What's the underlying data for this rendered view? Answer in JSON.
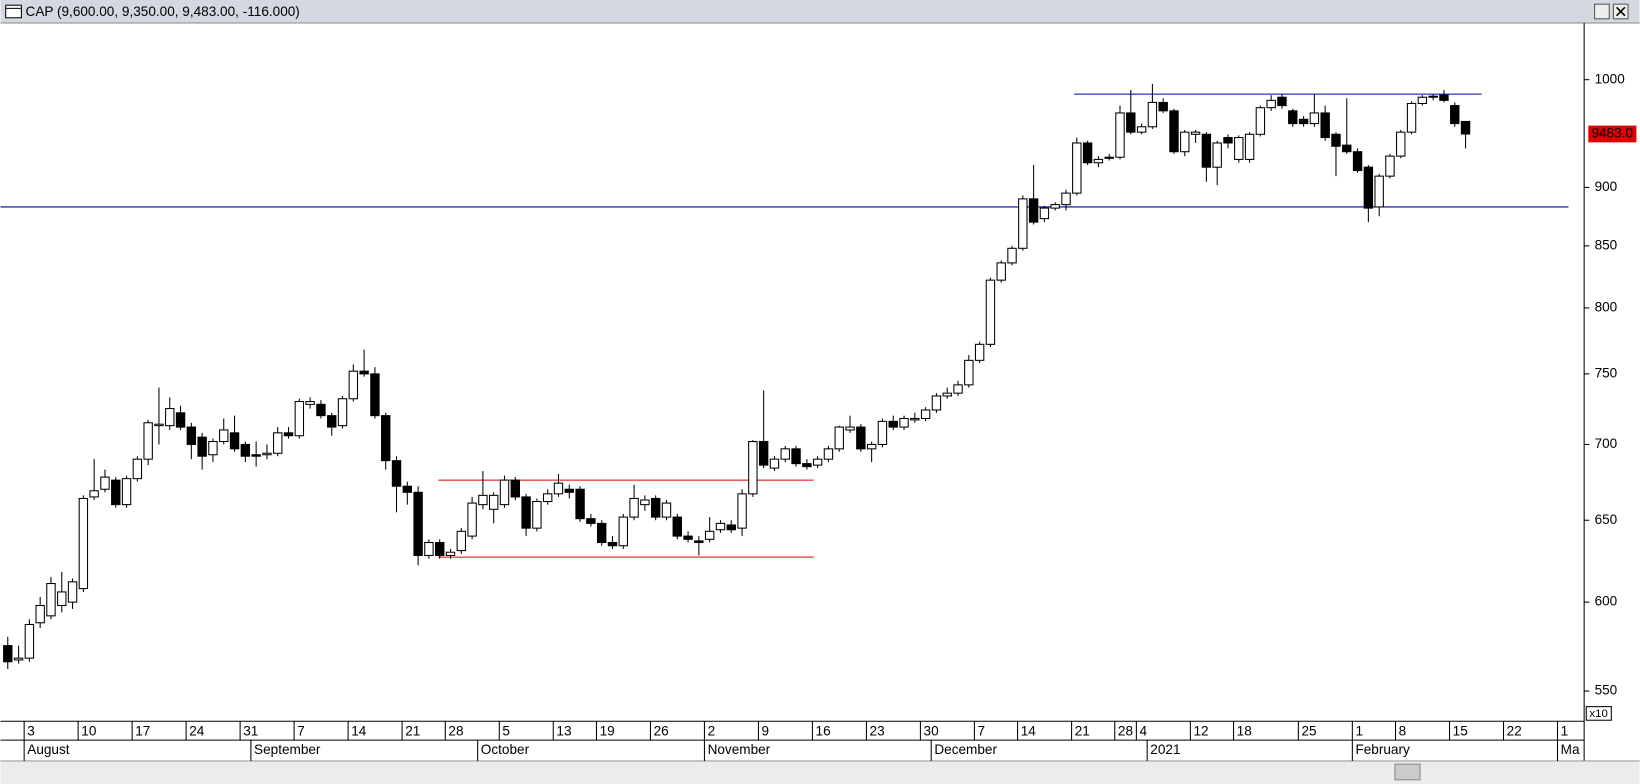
{
  "chart_data": {
    "type": "candlestick",
    "title": "CAP (9,600.00, 9,350.00, 9,483.00, -116.000)",
    "axis_note": "x10",
    "last_label": "9483.0",
    "log_scale": true,
    "ylim": [
      534,
      1057
    ],
    "yticks": [
      550,
      600,
      650,
      700,
      750,
      800,
      850,
      900,
      1000
    ],
    "categories": [
      null,
      null,
      "3",
      null,
      null,
      null,
      null,
      "10",
      null,
      null,
      null,
      null,
      "17",
      null,
      null,
      null,
      null,
      "24",
      null,
      null,
      null,
      null,
      "31",
      null,
      null,
      null,
      null,
      "7",
      null,
      null,
      null,
      null,
      "14",
      null,
      null,
      null,
      null,
      "21",
      null,
      null,
      null,
      "28",
      null,
      null,
      null,
      null,
      "5",
      null,
      null,
      null,
      null,
      "13",
      null,
      null,
      null,
      "19",
      null,
      null,
      null,
      null,
      "26",
      null,
      null,
      null,
      null,
      "2",
      null,
      null,
      null,
      null,
      "9",
      null,
      null,
      null,
      null,
      "16",
      null,
      null,
      null,
      null,
      "23",
      null,
      null,
      null,
      null,
      "30",
      null,
      null,
      null,
      null,
      "7",
      null,
      null,
      null,
      "14",
      null,
      null,
      null,
      null,
      "21",
      null,
      null,
      null,
      "28",
      null,
      "4",
      null,
      null,
      null,
      null,
      "12",
      null,
      null,
      null,
      "18",
      null,
      null,
      null,
      null,
      null,
      "25",
      null,
      null,
      null,
      null,
      "1",
      null,
      null,
      null,
      "8",
      null,
      null,
      null,
      null,
      "15",
      null,
      null,
      null,
      null,
      "22",
      null,
      null,
      null,
      null,
      "1"
    ],
    "months": [
      null,
      null,
      "August",
      null,
      null,
      null,
      null,
      null,
      null,
      null,
      null,
      null,
      null,
      null,
      null,
      null,
      null,
      null,
      null,
      null,
      null,
      null,
      null,
      "September",
      null,
      null,
      null,
      null,
      null,
      null,
      null,
      null,
      null,
      null,
      null,
      null,
      null,
      null,
      null,
      null,
      null,
      null,
      null,
      null,
      "October",
      null,
      null,
      null,
      null,
      null,
      null,
      null,
      null,
      null,
      null,
      null,
      null,
      null,
      null,
      null,
      null,
      null,
      null,
      null,
      null,
      "November",
      null,
      null,
      null,
      null,
      null,
      null,
      null,
      null,
      null,
      null,
      null,
      null,
      null,
      null,
      null,
      null,
      null,
      null,
      null,
      null,
      "December",
      null,
      null,
      null,
      null,
      null,
      null,
      null,
      null,
      null,
      null,
      null,
      null,
      null,
      null,
      null,
      null,
      null,
      null,
      null,
      "2021",
      null,
      null,
      null,
      null,
      null,
      null,
      null,
      null,
      null,
      null,
      null,
      null,
      null,
      null,
      null,
      null,
      null,
      null,
      "February",
      null,
      null,
      null,
      null,
      null,
      null,
      null,
      null,
      null,
      null,
      null,
      null,
      null,
      null,
      null,
      null,
      null,
      null,
      "Ma"
    ],
    "open": [
      575,
      567,
      568,
      588,
      592,
      598,
      600,
      608,
      665,
      670,
      676,
      660,
      677,
      690,
      713,
      713,
      722,
      712,
      705,
      693,
      702,
      708,
      700,
      693,
      693,
      694,
      708,
      706,
      728,
      728,
      720,
      713,
      732,
      752,
      750,
      720,
      689,
      672,
      668,
      628,
      636,
      628,
      631,
      640,
      660,
      657,
      660,
      676,
      665,
      645,
      662,
      667,
      670,
      670,
      651,
      648,
      636,
      634,
      652,
      660,
      664,
      652,
      652,
      640,
      637,
      638,
      644,
      647,
      645,
      667,
      702,
      684,
      690,
      697,
      687,
      686,
      690,
      697,
      710,
      712,
      697,
      700,
      716,
      712,
      717,
      718,
      724,
      734,
      736,
      742,
      760,
      772,
      822,
      836,
      848,
      890,
      873,
      882,
      885,
      895,
      940,
      922,
      926,
      927,
      968,
      950,
      955,
      978,
      970,
      932,
      948,
      948,
      918,
      945,
      925,
      925,
      948,
      973,
      983,
      970,
      962,
      958,
      968,
      948,
      938,
      932,
      918,
      883,
      910,
      928,
      950,
      977,
      983,
      985,
      975,
      960,
      null,
      null,
      null,
      null,
      null,
      null,
      null,
      null,
      null
    ],
    "high": [
      580,
      575,
      590,
      603,
      615,
      618,
      614,
      666,
      690,
      683,
      678,
      679,
      692,
      717,
      740,
      733,
      727,
      715,
      708,
      704,
      718,
      720,
      702,
      702,
      700,
      712,
      712,
      732,
      733,
      731,
      722,
      734,
      757,
      768,
      755,
      722,
      692,
      675,
      672,
      638,
      638,
      632,
      645,
      665,
      682,
      668,
      679,
      678,
      667,
      664,
      670,
      680,
      673,
      672,
      654,
      650,
      640,
      654,
      673,
      666,
      666,
      663,
      654,
      643,
      640,
      652,
      650,
      650,
      670,
      703,
      738,
      692,
      699,
      699,
      690,
      692,
      699,
      713,
      720,
      714,
      702,
      718,
      720,
      720,
      722,
      726,
      736,
      740,
      745,
      764,
      774,
      824,
      838,
      850,
      893,
      920,
      884,
      887,
      898,
      945,
      942,
      928,
      930,
      975,
      990,
      958,
      996,
      982,
      972,
      952,
      952,
      950,
      942,
      948,
      947,
      950,
      975,
      985,
      986,
      972,
      965,
      986,
      975,
      950,
      982,
      935,
      920,
      912,
      930,
      952,
      979,
      985,
      986,
      990,
      978,
      960,
      null,
      null,
      null,
      null,
      null,
      null,
      null,
      null,
      null
    ],
    "low": [
      562,
      565,
      566,
      585,
      590,
      594,
      596,
      606,
      663,
      668,
      658,
      658,
      675,
      686,
      700,
      710,
      710,
      690,
      683,
      688,
      700,
      695,
      688,
      685,
      690,
      692,
      704,
      704,
      725,
      718,
      706,
      711,
      730,
      748,
      718,
      683,
      655,
      660,
      622,
      626,
      626,
      626,
      629,
      638,
      657,
      648,
      658,
      663,
      640,
      643,
      660,
      665,
      664,
      649,
      646,
      634,
      632,
      632,
      650,
      656,
      650,
      650,
      638,
      636,
      628,
      636,
      642,
      642,
      640,
      665,
      684,
      682,
      688,
      685,
      683,
      684,
      688,
      695,
      708,
      695,
      688,
      698,
      710,
      710,
      715,
      716,
      722,
      732,
      734,
      740,
      758,
      770,
      820,
      834,
      846,
      868,
      870,
      880,
      880,
      893,
      920,
      918,
      924,
      925,
      948,
      948,
      953,
      968,
      930,
      928,
      940,
      905,
      902,
      935,
      922,
      922,
      946,
      970,
      972,
      955,
      955,
      955,
      942,
      910,
      930,
      913,
      870,
      875,
      908,
      926,
      948,
      975,
      980,
      978,
      955,
      935,
      null,
      null,
      null,
      null,
      null,
      null,
      null,
      null,
      null
    ],
    "close": [
      566,
      568,
      587,
      598,
      611,
      606,
      612,
      664,
      669,
      678,
      660,
      677,
      690,
      715,
      714,
      725,
      712,
      700,
      692,
      702,
      710,
      697,
      692,
      692,
      694,
      708,
      706,
      730,
      730,
      720,
      712,
      732,
      752,
      750,
      720,
      689,
      672,
      668,
      628,
      636,
      628,
      630,
      643,
      661,
      666,
      666,
      676,
      665,
      645,
      662,
      667,
      674,
      668,
      651,
      648,
      636,
      634,
      652,
      664,
      663,
      652,
      661,
      640,
      638,
      636,
      643,
      648,
      644,
      667,
      702,
      686,
      690,
      697,
      687,
      685,
      690,
      697,
      712,
      712,
      697,
      700,
      716,
      712,
      718,
      718,
      724,
      734,
      736,
      742,
      760,
      772,
      822,
      836,
      848,
      890,
      870,
      882,
      885,
      895,
      940,
      922,
      925,
      927,
      968,
      950,
      955,
      978,
      970,
      932,
      950,
      950,
      918,
      940,
      940,
      945,
      948,
      973,
      980,
      975,
      958,
      958,
      968,
      945,
      937,
      932,
      915,
      882,
      910,
      928,
      950,
      977,
      983,
      984,
      980,
      958,
      948.3,
      null,
      null,
      null,
      null,
      null,
      null,
      null,
      null,
      null
    ],
    "hlines": [
      {
        "value": 883,
        "color": "#0000a0"
      },
      {
        "value": 986,
        "color": "#0000a0"
      },
      {
        "value": 676,
        "color": "#e00000"
      },
      {
        "value": 627,
        "color": "#e00000"
      }
    ],
    "up_color": "#ffffff",
    "down_color": "#000000",
    "last_color": "#e00000"
  }
}
